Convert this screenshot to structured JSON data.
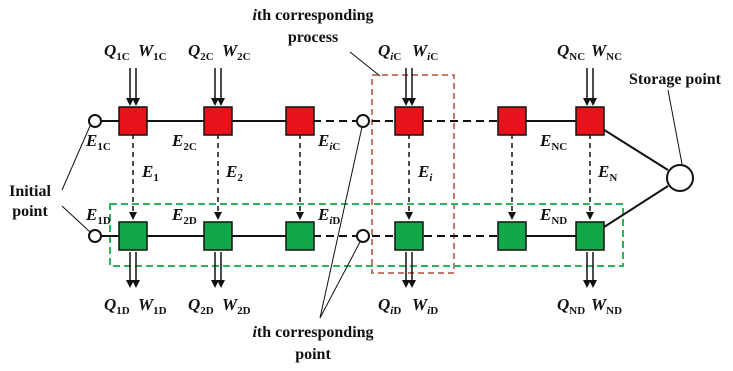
{
  "annotations": {
    "process_line1": "ith corresponding",
    "process_line2": "process",
    "point_line1": "ith corresponding",
    "point_line2": "point",
    "storage": "Storage point",
    "initial_line1": "Initial",
    "initial_line2": "point"
  },
  "top_flows": [
    {
      "q": "Q",
      "q_sub": "1C",
      "w": "W",
      "w_sub": "1C"
    },
    {
      "q": "Q",
      "q_sub": "2C",
      "w": "W",
      "w_sub": "2C"
    },
    {
      "q": "Q",
      "q_sub": "iC",
      "w": "W",
      "w_sub": "iC"
    },
    {
      "q": "Q",
      "q_sub": "NC",
      "w": "W",
      "w_sub": "NC"
    }
  ],
  "bottom_flows": [
    {
      "q": "Q",
      "q_sub": "1D",
      "w": "W",
      "w_sub": "1D"
    },
    {
      "q": "Q",
      "q_sub": "2D",
      "w": "W",
      "w_sub": "2D"
    },
    {
      "q": "Q",
      "q_sub": "iD",
      "w": "W",
      "w_sub": "iD"
    },
    {
      "q": "Q",
      "q_sub": "ND",
      "w": "W",
      "w_sub": "ND"
    }
  ],
  "top_line_labels": [
    {
      "main": "E",
      "sub": "1C"
    },
    {
      "main": "E",
      "sub": "2C"
    },
    {
      "main": "E",
      "sub": "iC"
    },
    {
      "main": "E",
      "sub": "NC"
    }
  ],
  "bottom_line_labels": [
    {
      "main": "E",
      "sub": "1D"
    },
    {
      "main": "E",
      "sub": "2D"
    },
    {
      "main": "E",
      "sub": "iD"
    },
    {
      "main": "E",
      "sub": "ND"
    }
  ],
  "transfer_labels": [
    {
      "main": "E",
      "sub": "1"
    },
    {
      "main": "E",
      "sub": "2"
    },
    {
      "main": "E",
      "sub": "i"
    },
    {
      "main": "E",
      "sub": "N"
    }
  ],
  "colors": {
    "charge_block": "#e8121b",
    "discharge_block": "#12a84a",
    "process_frame": "#c8786a",
    "discharge_frame": "#2fb35a"
  }
}
